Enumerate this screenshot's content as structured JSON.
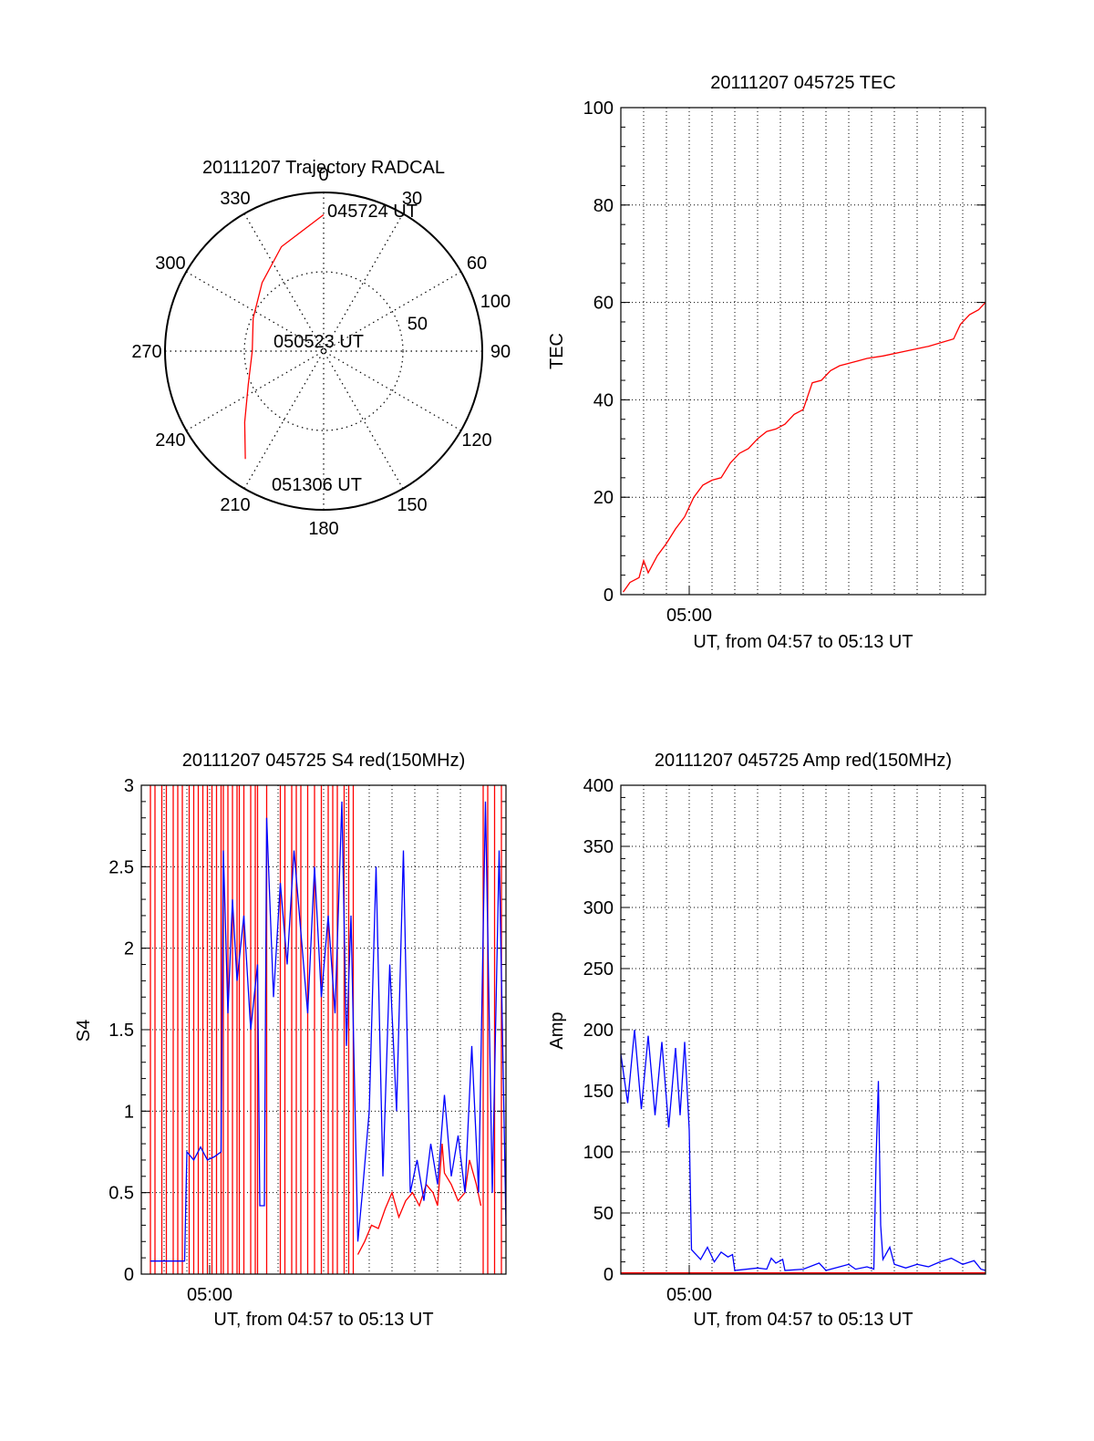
{
  "colors": {
    "background": "#ffffff",
    "axis": "#000000",
    "grid": "#000000",
    "trajectory": "#ff0000",
    "red_series": "#ff0000",
    "blue_series": "#0000ff"
  },
  "chart_data": [
    {
      "type": "polar",
      "title": "20111207 Trajectory RADCAL",
      "angle_ticks": [
        "0",
        "30",
        "60",
        "90",
        "120",
        "150",
        "180",
        "210",
        "240",
        "270",
        "300",
        "330"
      ],
      "angle_tick_values": [
        0,
        30,
        60,
        90,
        120,
        150,
        180,
        210,
        240,
        270,
        300,
        330
      ],
      "radial_ticks": [
        "50",
        "100"
      ],
      "radial_tick_values": [
        50,
        100
      ],
      "annotations": [
        "045724 UT",
        "050523 UT",
        "051306 UT"
      ],
      "grid": true,
      "series": [
        {
          "color": "#ff0000",
          "points": [
            {
              "az": 0,
              "r": 86
            },
            {
              "az": 338,
              "r": 71
            },
            {
              "az": 318,
              "r": 58
            },
            {
              "az": 295,
              "r": 49
            },
            {
              "az": 270,
              "r": 45
            },
            {
              "az": 246,
              "r": 52
            },
            {
              "az": 228,
              "r": 67
            },
            {
              "az": 216,
              "r": 84
            }
          ]
        }
      ]
    },
    {
      "type": "line",
      "title": "20111207 045725 TEC",
      "xlabel": "UT, from 04:57 to 05:13 UT",
      "ylabel": "TEC",
      "x_tick_labels": [
        "05:00"
      ],
      "x_tick_minutes": [
        3
      ],
      "xlim_minutes": [
        0,
        16
      ],
      "ylim": [
        0,
        100
      ],
      "y_ticks": [
        0,
        20,
        40,
        60,
        80,
        100
      ],
      "grid": true,
      "series": [
        {
          "color": "#ff0000",
          "points": [
            [
              0.1,
              0.5
            ],
            [
              0.4,
              2.5
            ],
            [
              0.8,
              3.5
            ],
            [
              1.0,
              7.0
            ],
            [
              1.2,
              4.5
            ],
            [
              1.6,
              8.0
            ],
            [
              2.0,
              10.5
            ],
            [
              2.4,
              13.5
            ],
            [
              2.8,
              16.0
            ],
            [
              3.2,
              20.0
            ],
            [
              3.6,
              22.5
            ],
            [
              4.0,
              23.5
            ],
            [
              4.4,
              24.0
            ],
            [
              4.8,
              27.0
            ],
            [
              5.2,
              29.0
            ],
            [
              5.6,
              30.0
            ],
            [
              6.0,
              32.0
            ],
            [
              6.4,
              33.5
            ],
            [
              6.8,
              34.0
            ],
            [
              7.2,
              35.0
            ],
            [
              7.6,
              37.0
            ],
            [
              8.0,
              38.0
            ],
            [
              8.4,
              43.5
            ],
            [
              8.8,
              44.0
            ],
            [
              9.2,
              46.0
            ],
            [
              9.6,
              47.0
            ],
            [
              10.0,
              47.5
            ],
            [
              10.4,
              48.0
            ],
            [
              10.8,
              48.5
            ],
            [
              11.5,
              49.0
            ],
            [
              12.5,
              50.0
            ],
            [
              13.5,
              51.0
            ],
            [
              14.6,
              52.5
            ],
            [
              14.9,
              55.5
            ],
            [
              15.3,
              57.5
            ],
            [
              15.7,
              58.5
            ],
            [
              16.0,
              60.0
            ]
          ]
        }
      ]
    },
    {
      "type": "line",
      "title": "20111207 045725 S4 red(150MHz)",
      "xlabel": "UT, from 04:57 to 05:13 UT",
      "ylabel": "S4",
      "x_tick_labels": [
        "05:00"
      ],
      "x_tick_minutes": [
        3
      ],
      "xlim_minutes": [
        0,
        16
      ],
      "ylim": [
        0,
        3
      ],
      "y_ticks": [
        0,
        0.5,
        1,
        1.5,
        2,
        2.5,
        3
      ],
      "y_tick_labels": [
        "0",
        "0.5",
        "1",
        "1.5",
        "2",
        "2.5",
        "3"
      ],
      "grid": true,
      "series": [
        {
          "color": "#ff0000",
          "spikes_minutes": [
            0.4,
            0.6,
            0.9,
            1.1,
            1.4,
            1.6,
            1.8,
            2.1,
            2.3,
            2.5,
            2.7,
            2.9,
            3.1,
            3.3,
            3.5,
            3.6,
            3.8,
            4.0,
            4.2,
            4.3,
            4.5,
            4.8,
            5.0,
            5.1,
            5.5,
            6.1,
            6.3,
            6.6,
            6.8,
            7.0,
            7.3,
            7.6,
            7.9,
            8.2,
            8.4,
            8.6,
            8.9,
            9.1,
            9.3,
            15.0,
            15.2,
            15.5,
            15.8
          ],
          "points": [
            [
              9.5,
              0.12
            ],
            [
              9.8,
              0.2
            ],
            [
              10.1,
              0.3
            ],
            [
              10.4,
              0.28
            ],
            [
              10.7,
              0.4
            ],
            [
              11.0,
              0.5
            ],
            [
              11.3,
              0.35
            ],
            [
              11.6,
              0.45
            ],
            [
              11.9,
              0.5
            ],
            [
              12.2,
              0.42
            ],
            [
              12.5,
              0.55
            ],
            [
              12.8,
              0.5
            ],
            [
              13.0,
              0.42
            ],
            [
              13.2,
              0.8
            ],
            [
              13.3,
              0.62
            ],
            [
              13.6,
              0.55
            ],
            [
              13.9,
              0.45
            ],
            [
              14.2,
              0.5
            ],
            [
              14.4,
              0.7
            ],
            [
              14.7,
              0.55
            ],
            [
              14.9,
              0.42
            ]
          ]
        },
        {
          "color": "#0000ff",
          "points": [
            [
              0.4,
              0.08
            ],
            [
              1.9,
              0.08
            ],
            [
              2.0,
              0.75
            ],
            [
              2.3,
              0.7
            ],
            [
              2.6,
              0.78
            ],
            [
              2.9,
              0.7
            ],
            [
              3.2,
              0.72
            ],
            [
              3.5,
              0.75
            ],
            [
              3.6,
              2.6
            ],
            [
              3.8,
              1.6
            ],
            [
              4.0,
              2.3
            ],
            [
              4.2,
              1.8
            ],
            [
              4.5,
              2.2
            ],
            [
              4.8,
              1.5
            ],
            [
              5.1,
              1.9
            ],
            [
              5.2,
              0.42
            ],
            [
              5.4,
              0.42
            ],
            [
              5.5,
              2.8
            ],
            [
              5.8,
              1.7
            ],
            [
              6.1,
              2.4
            ],
            [
              6.4,
              1.9
            ],
            [
              6.7,
              2.6
            ],
            [
              7.0,
              2.1
            ],
            [
              7.3,
              1.6
            ],
            [
              7.6,
              2.5
            ],
            [
              7.9,
              1.7
            ],
            [
              8.2,
              2.2
            ],
            [
              8.5,
              1.6
            ],
            [
              8.8,
              2.9
            ],
            [
              9.0,
              1.4
            ],
            [
              9.2,
              2.2
            ],
            [
              9.5,
              0.2
            ],
            [
              9.7,
              0.5
            ],
            [
              10.0,
              1.0
            ],
            [
              10.3,
              2.5
            ],
            [
              10.6,
              0.6
            ],
            [
              10.9,
              1.9
            ],
            [
              11.2,
              1.0
            ],
            [
              11.5,
              2.6
            ],
            [
              11.8,
              0.5
            ],
            [
              12.1,
              0.7
            ],
            [
              12.4,
              0.45
            ],
            [
              12.7,
              0.8
            ],
            [
              13.0,
              0.55
            ],
            [
              13.3,
              1.1
            ],
            [
              13.6,
              0.6
            ],
            [
              13.9,
              0.85
            ],
            [
              14.2,
              0.5
            ],
            [
              14.5,
              1.4
            ],
            [
              14.8,
              0.5
            ],
            [
              15.1,
              2.9
            ],
            [
              15.4,
              0.5
            ],
            [
              15.7,
              2.6
            ],
            [
              16.0,
              0.3
            ]
          ]
        }
      ]
    },
    {
      "type": "line",
      "title": "20111207 045725 Amp red(150MHz)",
      "xlabel": "UT, from 04:57 to 05:13 UT",
      "ylabel": "Amp",
      "x_tick_labels": [
        "05:00"
      ],
      "x_tick_minutes": [
        3
      ],
      "xlim_minutes": [
        0,
        16
      ],
      "ylim": [
        0,
        400
      ],
      "y_ticks": [
        0,
        50,
        100,
        150,
        200,
        250,
        300,
        350,
        400
      ],
      "grid": true,
      "series": [
        {
          "color": "#ff0000",
          "points": [
            [
              0.0,
              1
            ],
            [
              16.0,
              1
            ]
          ]
        },
        {
          "color": "#0000ff",
          "points": [
            [
              0.0,
              180
            ],
            [
              0.3,
              140
            ],
            [
              0.6,
              200
            ],
            [
              0.9,
              135
            ],
            [
              1.2,
              195
            ],
            [
              1.5,
              130
            ],
            [
              1.8,
              190
            ],
            [
              2.1,
              120
            ],
            [
              2.4,
              185
            ],
            [
              2.6,
              130
            ],
            [
              2.8,
              190
            ],
            [
              3.0,
              118
            ],
            [
              3.1,
              20
            ],
            [
              3.5,
              12
            ],
            [
              3.8,
              22
            ],
            [
              4.1,
              10
            ],
            [
              4.4,
              18
            ],
            [
              4.7,
              14
            ],
            [
              4.9,
              16
            ],
            [
              5.0,
              3
            ],
            [
              6.0,
              5
            ],
            [
              6.4,
              4
            ],
            [
              6.6,
              13
            ],
            [
              6.8,
              9
            ],
            [
              7.1,
              12
            ],
            [
              7.2,
              3
            ],
            [
              8.0,
              4
            ],
            [
              8.7,
              9
            ],
            [
              9.0,
              3
            ],
            [
              9.6,
              6
            ],
            [
              10.0,
              8
            ],
            [
              10.3,
              4
            ],
            [
              10.8,
              6
            ],
            [
              11.1,
              4
            ],
            [
              11.2,
              95
            ],
            [
              11.3,
              158
            ],
            [
              11.4,
              40
            ],
            [
              11.5,
              12
            ],
            [
              11.8,
              22
            ],
            [
              12.0,
              8
            ],
            [
              12.5,
              5
            ],
            [
              13.0,
              8
            ],
            [
              13.5,
              6
            ],
            [
              14.0,
              10
            ],
            [
              14.5,
              13
            ],
            [
              15.0,
              8
            ],
            [
              15.5,
              11
            ],
            [
              15.8,
              4
            ],
            [
              16.0,
              3
            ]
          ]
        }
      ]
    }
  ]
}
